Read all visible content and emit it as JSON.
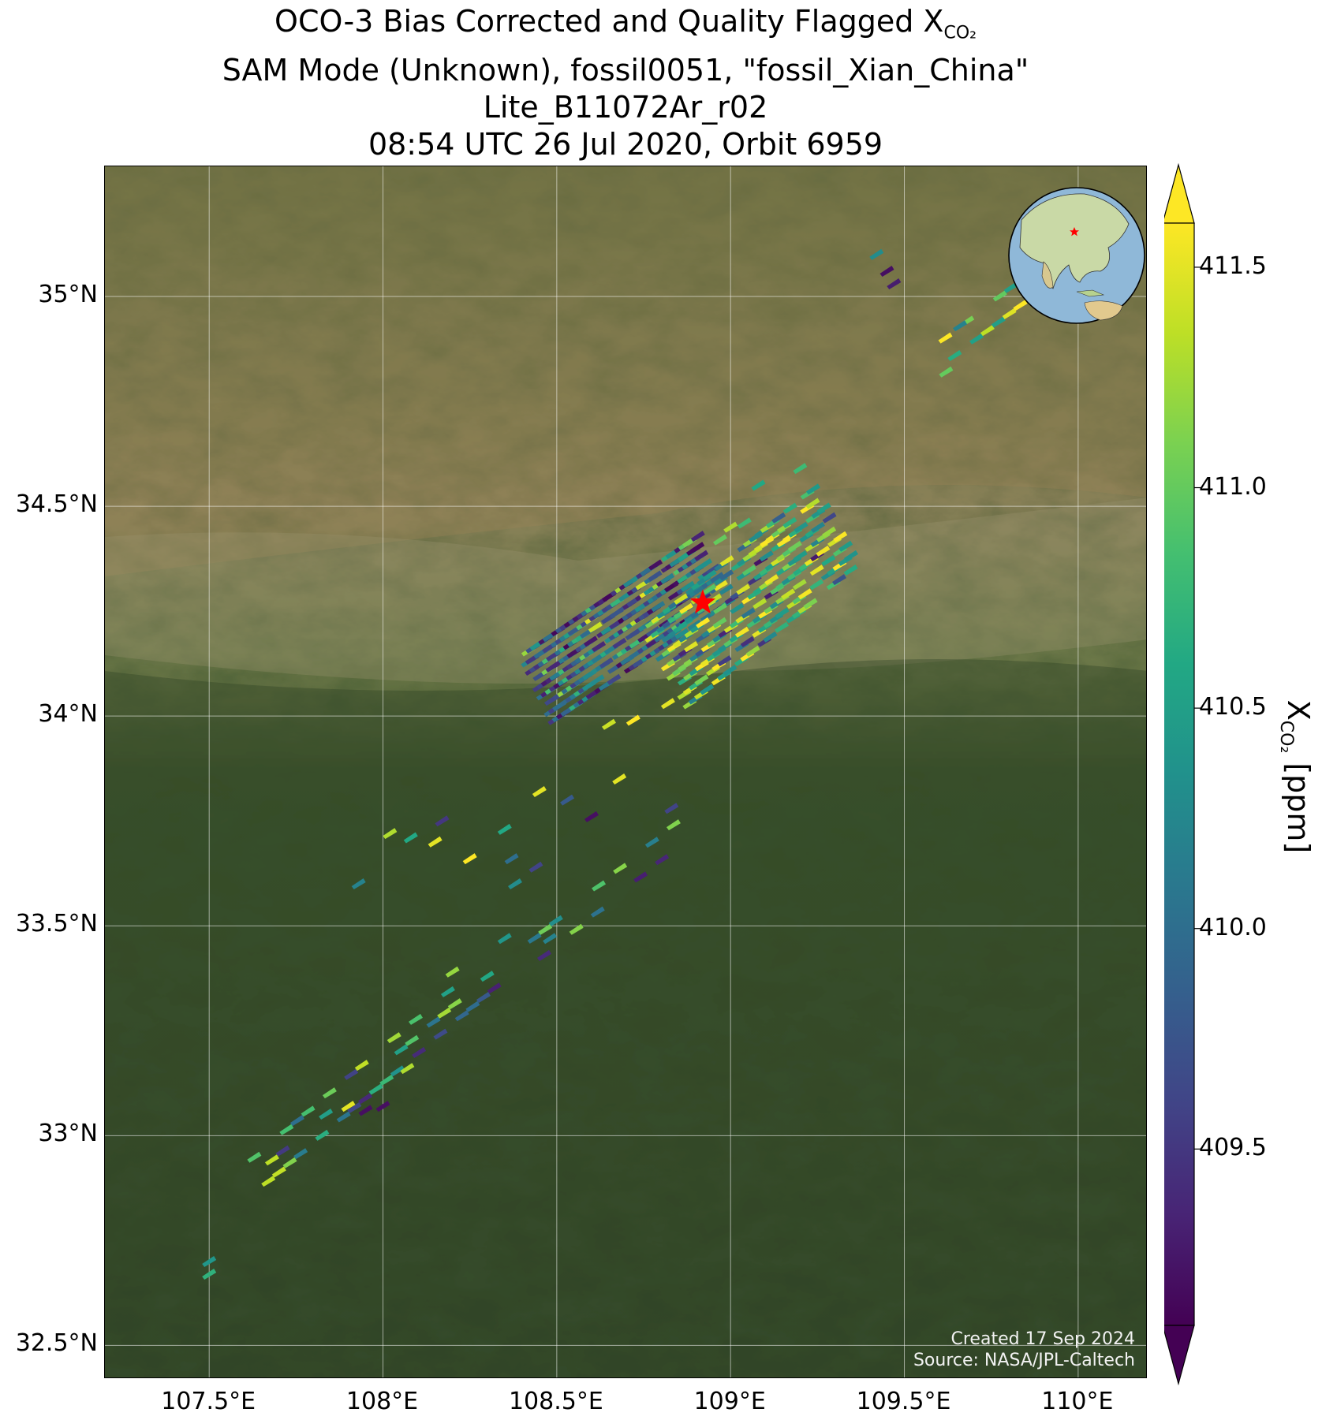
{
  "title": {
    "line1_main": "OCO-3 Bias Corrected and Quality Flagged X",
    "line1_sub": "CO₂",
    "line2": "SAM Mode (Unknown), fossil0051, \"fossil_Xian_China\"",
    "line3": "Lite_B11072Ar_r02",
    "line4": "08:54 UTC 26 Jul 2020, Orbit 6959"
  },
  "map": {
    "lon_range": [
      107.2,
      110.2
    ],
    "lat_range": [
      32.42,
      35.31
    ],
    "target": {
      "lon": 108.92,
      "lat": 34.27,
      "marker": "red-star"
    },
    "basemap": "satellite imagery",
    "gridlines": true,
    "lon_ticks": [
      {
        "value": 107.5,
        "label": "107.5°E"
      },
      {
        "value": 108.0,
        "label": "108°E"
      },
      {
        "value": 108.5,
        "label": "108.5°E"
      },
      {
        "value": 109.0,
        "label": "109°E"
      },
      {
        "value": 109.5,
        "label": "109.5°E"
      },
      {
        "value": 110.0,
        "label": "110°E"
      }
    ],
    "lat_ticks": [
      {
        "value": 35.0,
        "label": "35°N"
      },
      {
        "value": 34.5,
        "label": "34.5°N"
      },
      {
        "value": 34.0,
        "label": "34°N"
      },
      {
        "value": 33.5,
        "label": "33.5°N"
      },
      {
        "value": 33.0,
        "label": "33°N"
      },
      {
        "value": 32.5,
        "label": "32.5°N"
      }
    ],
    "inset_globe": {
      "content": "globe centered on Asia with red star at target",
      "marker": "red-star"
    }
  },
  "credit": {
    "created": "Created 17 Sep 2024",
    "source": "Source: NASA/JPL-Caltech"
  },
  "colorbar": {
    "colormap": "viridis",
    "vmin": 409.1,
    "vmax": 411.6,
    "extend": "both",
    "ticks": [
      {
        "value": 409.5,
        "label": "409.5"
      },
      {
        "value": 410.0,
        "label": "410.0"
      },
      {
        "value": 410.5,
        "label": "410.5"
      },
      {
        "value": 411.0,
        "label": "411.0"
      },
      {
        "value": 411.5,
        "label": "411.5"
      }
    ],
    "label_main": "X",
    "label_sub": "CO₂",
    "label_unit": " [ppm]"
  },
  "swath_clusters": [
    {
      "name": "xian-main",
      "lon0": 108.45,
      "lat0": 34.07,
      "lon1": 108.95,
      "lat1": 34.35,
      "width": 0.18,
      "cols": 42,
      "rows": 9,
      "bias": "low"
    },
    {
      "name": "xian-east",
      "lon0": 108.82,
      "lat0": 34.12,
      "lon1": 109.3,
      "lat1": 34.45,
      "width": 0.22,
      "cols": 30,
      "rows": 9,
      "bias": "high"
    },
    {
      "name": "south-strip",
      "lon0": 108.45,
      "lat0": 33.45,
      "lon1": 108.85,
      "lat1": 33.72,
      "width": 0.05,
      "cols": 14,
      "rows": 2,
      "bias": "mixed"
    },
    {
      "name": "southwest-strip",
      "lon0": 107.65,
      "lat0": 32.92,
      "lon1": 108.3,
      "lat1": 33.38,
      "width": 0.07,
      "cols": 22,
      "rows": 3,
      "bias": "mixed"
    },
    {
      "name": "northeast-strip",
      "lon0": 109.6,
      "lat0": 34.86,
      "lon1": 109.82,
      "lat1": 35.0,
      "width": 0.05,
      "cols": 8,
      "rows": 2,
      "bias": "high"
    }
  ],
  "sparse_points": [
    {
      "lon": 107.5,
      "lat": 32.67,
      "xco2": 410.7
    },
    {
      "lon": 107.5,
      "lat": 32.7,
      "xco2": 410.4
    },
    {
      "lon": 107.93,
      "lat": 33.6,
      "xco2": 410.2
    },
    {
      "lon": 108.02,
      "lat": 33.72,
      "xco2": 411.3
    },
    {
      "lon": 108.08,
      "lat": 33.71,
      "xco2": 410.6
    },
    {
      "lon": 108.15,
      "lat": 33.7,
      "xco2": 411.5
    },
    {
      "lon": 108.17,
      "lat": 33.75,
      "xco2": 409.5
    },
    {
      "lon": 108.25,
      "lat": 33.66,
      "xco2": 411.6
    },
    {
      "lon": 108.35,
      "lat": 33.73,
      "xco2": 410.6
    },
    {
      "lon": 108.37,
      "lat": 33.66,
      "xco2": 410.0
    },
    {
      "lon": 108.44,
      "lat": 33.64,
      "xco2": 409.6
    },
    {
      "lon": 108.38,
      "lat": 33.6,
      "xco2": 410.3
    },
    {
      "lon": 108.45,
      "lat": 33.82,
      "xco2": 411.5
    },
    {
      "lon": 108.53,
      "lat": 33.8,
      "xco2": 409.8
    },
    {
      "lon": 108.6,
      "lat": 33.76,
      "xco2": 409.2
    },
    {
      "lon": 108.68,
      "lat": 33.85,
      "xco2": 411.5
    },
    {
      "lon": 108.83,
      "lat": 33.78,
      "xco2": 409.6
    },
    {
      "lon": 108.2,
      "lat": 33.39,
      "xco2": 411.2
    },
    {
      "lon": 108.35,
      "lat": 33.47,
      "xco2": 410.4
    },
    {
      "lon": 108.48,
      "lat": 33.47,
      "xco2": 410.2
    },
    {
      "lon": 108.07,
      "lat": 33.16,
      "xco2": 411.3
    },
    {
      "lon": 107.9,
      "lat": 33.07,
      "xco2": 411.5
    },
    {
      "lon": 107.95,
      "lat": 33.06,
      "xco2": 409.2
    },
    {
      "lon": 108.0,
      "lat": 33.07,
      "xco2": 409.2
    },
    {
      "lon": 109.08,
      "lat": 34.55,
      "xco2": 410.6
    },
    {
      "lon": 109.2,
      "lat": 34.59,
      "xco2": 410.8
    },
    {
      "lon": 109.42,
      "lat": 35.1,
      "xco2": 410.3
    },
    {
      "lon": 109.45,
      "lat": 35.06,
      "xco2": 409.2
    },
    {
      "lon": 109.47,
      "lat": 35.03,
      "xco2": 409.3
    },
    {
      "lon": 109.62,
      "lat": 34.82,
      "xco2": 411.0
    },
    {
      "lon": 109.66,
      "lat": 34.93,
      "xco2": 410.2
    },
    {
      "lon": 108.65,
      "lat": 33.98,
      "xco2": 411.4
    },
    {
      "lon": 108.72,
      "lat": 33.99,
      "xco2": 411.6
    },
    {
      "lon": 108.82,
      "lat": 34.03,
      "xco2": 411.5
    },
    {
      "lon": 109.0,
      "lat": 34.45,
      "xco2": 411.3
    },
    {
      "lon": 108.97,
      "lat": 34.42,
      "xco2": 411.0
    },
    {
      "lon": 109.04,
      "lat": 34.46,
      "xco2": 410.8
    }
  ]
}
